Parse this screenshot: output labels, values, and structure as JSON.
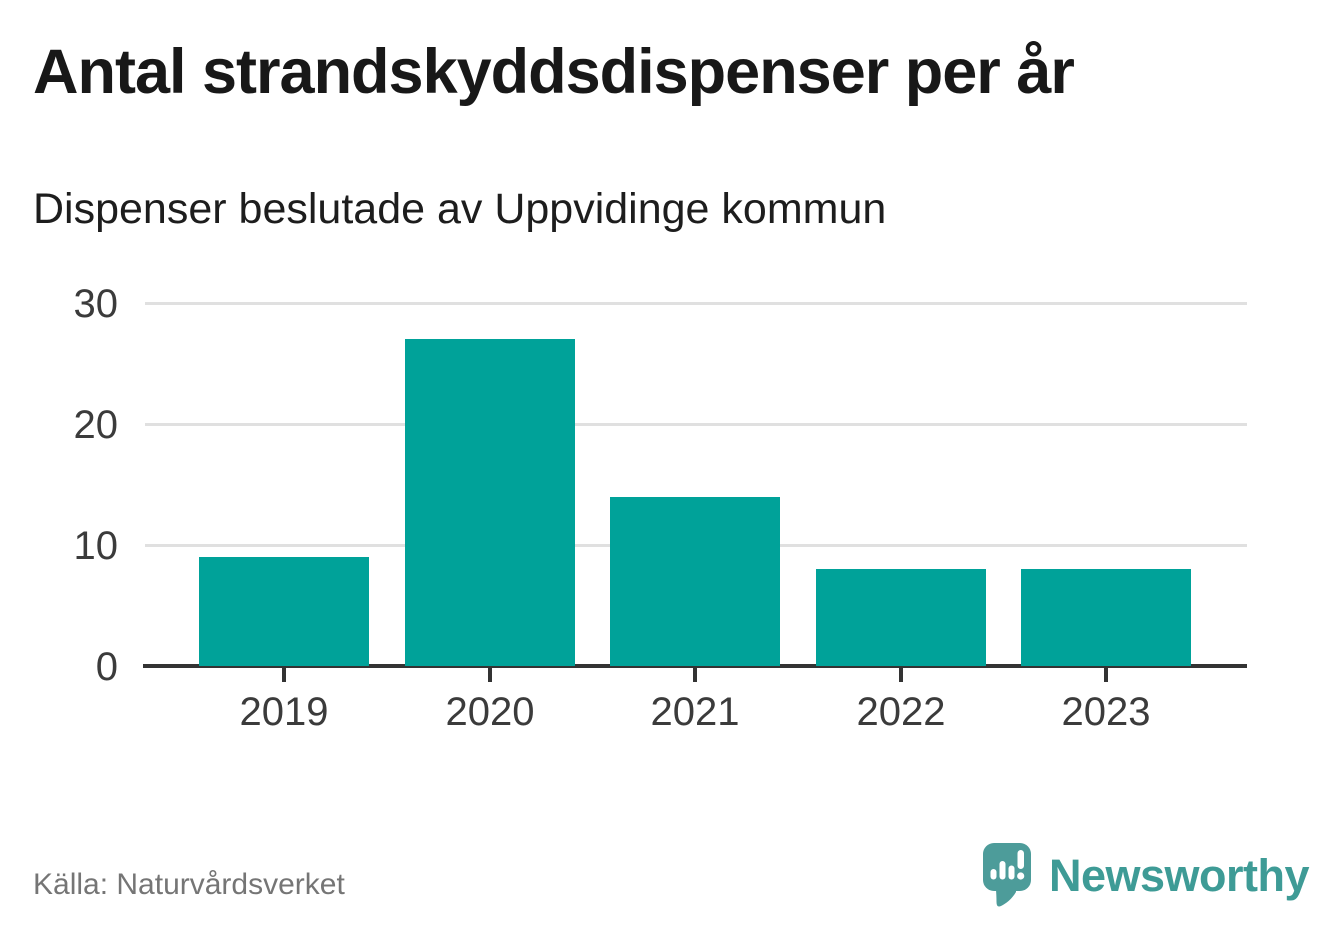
{
  "header": {
    "title": "Antal strandskyddsdispenser per år",
    "subtitle": "Dispenser beslutade av Uppvidinge kommun"
  },
  "chart_data": {
    "type": "bar",
    "title": "Antal strandskyddsdispenser per år",
    "subtitle": "Dispenser beslutade av Uppvidinge kommun",
    "categories": [
      "2019",
      "2020",
      "2021",
      "2022",
      "2023"
    ],
    "values": [
      9,
      27,
      14,
      8,
      8
    ],
    "series": [
      {
        "name": "Dispenser",
        "values": [
          9,
          27,
          14,
          8,
          8
        ]
      }
    ],
    "xlabel": "",
    "ylabel": "",
    "yticks": [
      0,
      10,
      20,
      30
    ],
    "ylim": [
      0,
      30
    ],
    "grid": true,
    "legend": "none",
    "source": "Källa: Naturvårdsverket"
  },
  "footer": {
    "source": "Källa: Naturvårdsverket",
    "brand": "Newsworthy",
    "brand_icon": "newsworthy-speech-bubble-chart-icon"
  },
  "colors": {
    "bar": "#00A299",
    "grid": "#E0E0E0",
    "axis": "#333333",
    "title_text": "#181818",
    "tick_text": "#3B3B3B",
    "muted_text": "#757575",
    "logo_mark": "#4D9C9A",
    "logo_text": "#3E9B96",
    "background": "#FFFFFF"
  }
}
